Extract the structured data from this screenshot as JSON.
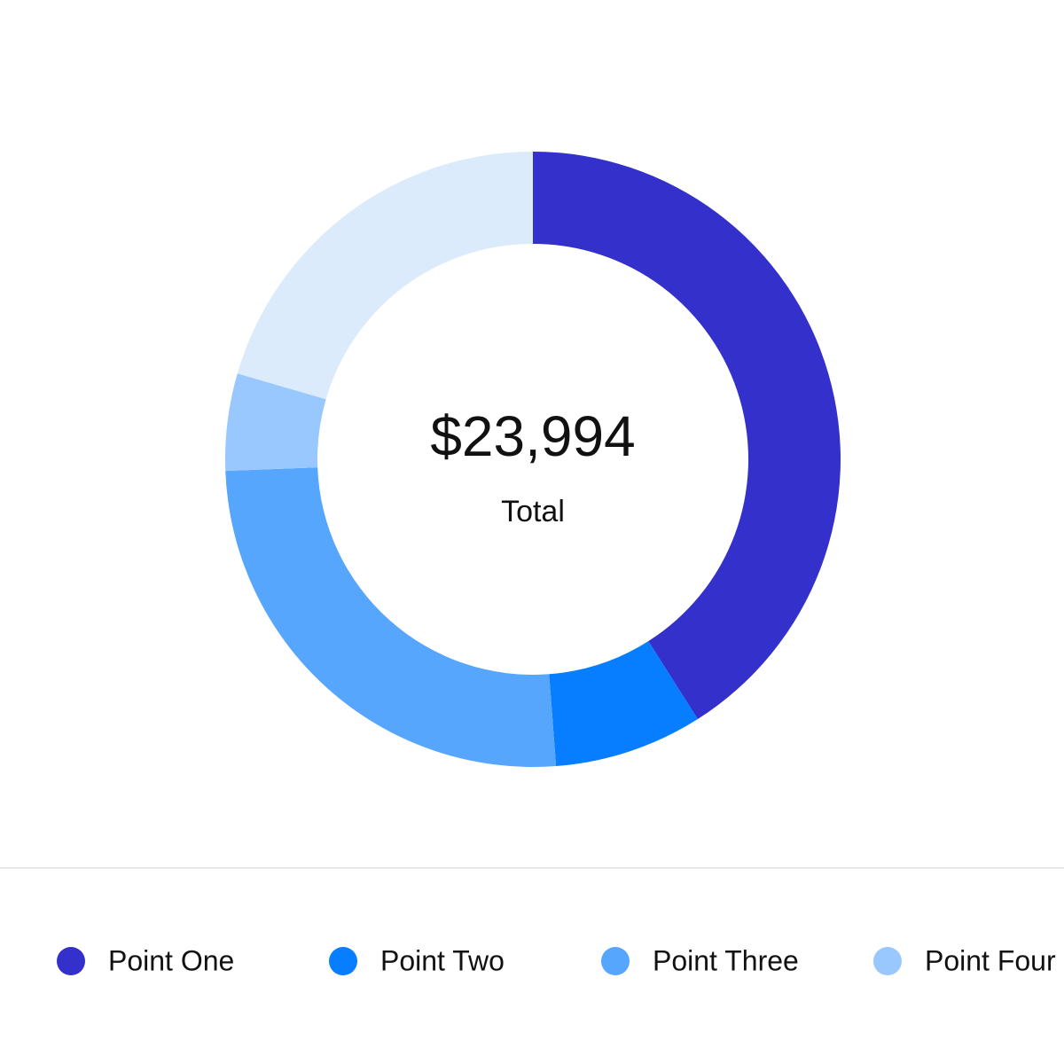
{
  "chart_data": {
    "type": "donut",
    "center_value": "$23,994",
    "center_label": "Total",
    "categories": [
      "Point One",
      "Point Two",
      "Point Three",
      "Point Four",
      null
    ],
    "values": [
      41,
      7.8,
      25.6,
      5.1,
      20.5
    ],
    "colors": [
      "#3430cc",
      "#077dff",
      "#57a6fd",
      "#99c8fe",
      "#dcebfc"
    ]
  }
}
